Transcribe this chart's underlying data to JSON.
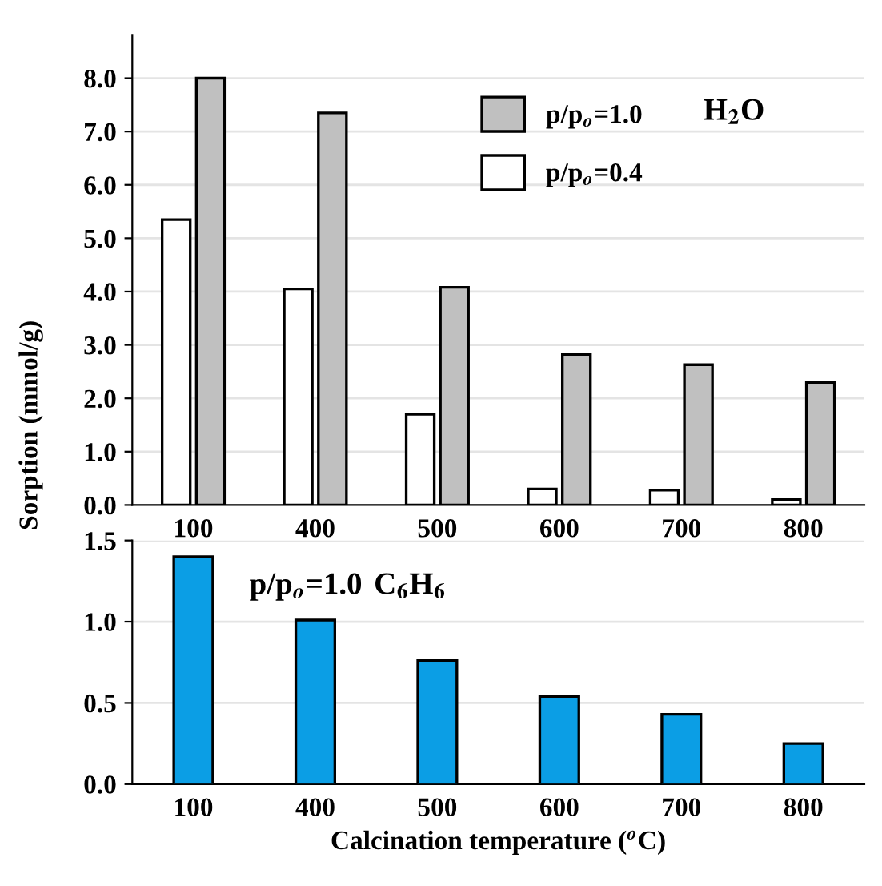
{
  "chart_data": [
    {
      "type": "bar",
      "ylabel": "Sorption (mmol/g)",
      "categories": [
        "100",
        "400",
        "500",
        "600",
        "700",
        "800"
      ],
      "series": [
        {
          "name": "p/p$_{o}$=0.4",
          "color": "#ffffff",
          "values": [
            5.35,
            4.05,
            1.7,
            0.3,
            0.28,
            0.1
          ]
        },
        {
          "name": "p/p$_{o}$=1.0",
          "color": "#c0c0c0",
          "values": [
            8.0,
            7.35,
            4.08,
            2.82,
            2.63,
            2.3
          ]
        }
      ],
      "ylim": [
        0,
        8.8
      ],
      "yticks": [
        {
          "value": 0,
          "label": "0.0"
        },
        {
          "value": 1,
          "label": "1.0"
        },
        {
          "value": 2,
          "label": "2.0"
        },
        {
          "value": 3,
          "label": "3.0"
        },
        {
          "value": 4,
          "label": "4.0"
        },
        {
          "value": 5,
          "label": "5.0"
        },
        {
          "value": 6,
          "label": "6.0"
        },
        {
          "value": 7,
          "label": "7.0"
        },
        {
          "value": 8,
          "label": "8.0"
        }
      ],
      "grid": "y",
      "legend": "top right",
      "annotations": [
        "H$_{2}$O"
      ]
    },
    {
      "type": "bar",
      "xlabel": "Calcination temperature ($^{o}$C)",
      "categories": [
        "100",
        "400",
        "500",
        "600",
        "700",
        "800"
      ],
      "series": [
        {
          "color": "#0b9ee5",
          "values": [
            1.4,
            1.01,
            0.76,
            0.54,
            0.43,
            0.25
          ]
        }
      ],
      "ylim": [
        0,
        1.5
      ],
      "yticks": [
        {
          "value": 0,
          "label": "0.0"
        },
        0.5,
        {
          "value": 1,
          "label": "1.0"
        },
        1.5
      ],
      "grid": "y",
      "annotations": [
        "p/p$_{o}$=1.0",
        "C$_{6}$H$_{6}$"
      ]
    }
  ]
}
